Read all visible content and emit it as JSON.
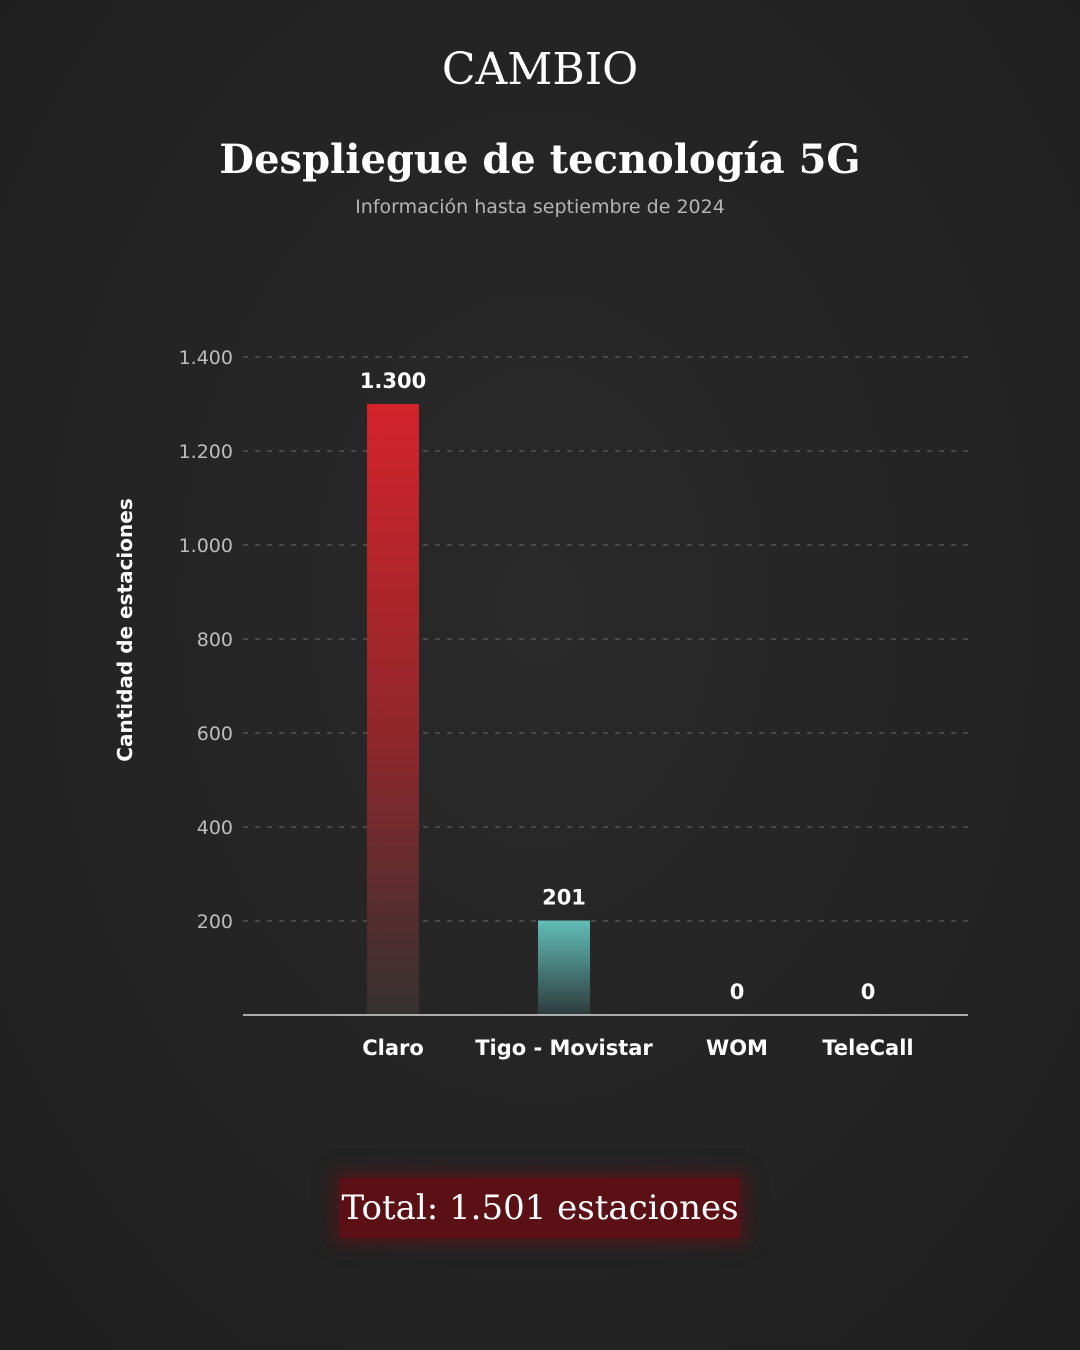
{
  "header": {
    "brand": "CAMBIO"
  },
  "chart_data": {
    "type": "bar",
    "title": "Despliegue de tecnología 5G",
    "subtitle": "Información hasta septiembre de 2024",
    "ylabel": "Cantidad de estaciones",
    "xlabel": "",
    "categories": [
      "Claro",
      "Tigo - Movistar",
      "WOM",
      "TeleCall"
    ],
    "values": [
      1300,
      201,
      0,
      0
    ],
    "value_labels": [
      "1.300",
      "201",
      "0",
      "0"
    ],
    "ylim": [
      0,
      1400
    ],
    "yticks": [
      200,
      400,
      600,
      800,
      1000,
      1200,
      1400
    ],
    "ytick_labels": [
      "200",
      "400",
      "600",
      "800",
      "1.000",
      "1.200",
      "1.400"
    ],
    "grid": true,
    "legend": "none",
    "colors": {
      "Claro": "#d4232b",
      "Tigo - Movistar": "#62bdb8"
    }
  },
  "footer": {
    "total": "Total: 1.501 estaciones"
  },
  "colors": {
    "background": "#242424",
    "total_box": "#5a1014",
    "text": "#ffffff",
    "muted_text": "#b5b5b5",
    "grid": "#6a6a6a"
  }
}
